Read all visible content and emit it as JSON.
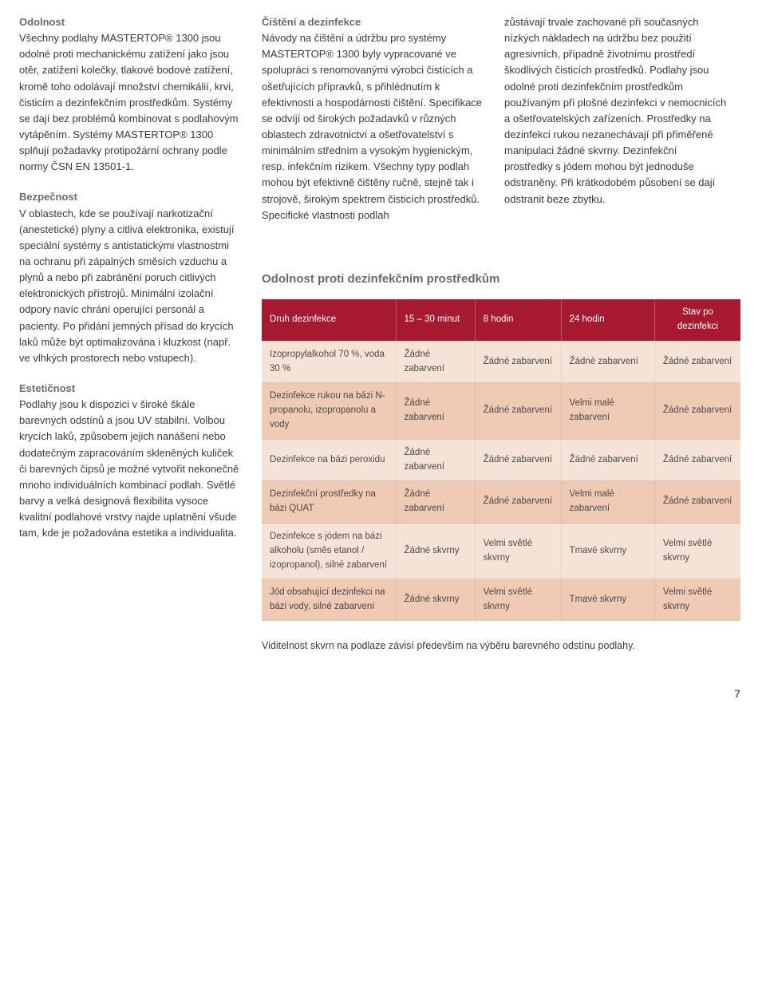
{
  "col1": {
    "h1": "Odolnost",
    "p1": "Všechny podlahy MASTERTOP® 1300 jsou odolné proti mechanickému zatížení jako jsou otěr, zatížení kolečky, tlakové bodové zatížení, kromě toho odolávají množství chemikálií, krvi, čisticím a dezinfekčním prostředkům. Systémy se dají bez problémů kombinovat s podlahovým vytápěním. Systémy MASTERTOP® 1300 splňují požadavky protipožární ochrany podle normy ČSN EN 13501-1.",
    "h2": "Bezpečnost",
    "p2": "V oblastech, kde se používají narkotizační (anestetické) plyny a citlivá elektronika, existují speciální systémy s antistatickými vlastnostmi na ochranu při zápalných směsích vzduchu a plynů a nebo při zabránění poruch citlivých elektronických přístrojů. Minimální izolační odpory navíc chrání operující personál a pacienty. Po přidání jemných přísad do krycích laků může být optimalizována i kluzkost (např. ve vlhkých prostorech nebo vstupech).",
    "h3": "Estetičnost",
    "p3": "Podlahy jsou k dispozici v široké škále barevných odstínů a jsou UV stabilní. Volbou krycích laků, způsobem jejich nanášení nebo dodatečným zapracováním skleněných kuliček či barevných čipsů je možné vytvořit nekonečně mnoho individuálních kombinací podlah. Světlé barvy a velká designová flexibilita vysoce kvalitní podlahové vrstvy najde uplatnění všude tam, kde je požadována estetika a individualita."
  },
  "col2": {
    "h1": "Čištění a dezinfekce",
    "p1": "Návody na čištění a údržbu pro systémy MASTERTOP® 1300 byly vypracované ve spolupráci s renomovanými výrobci čistících a ošetřujících přípravků, s přihlédnutím k efektivnosti a hospodárnosti čištění. Specifikace se odvíjí od širokých požadavků v různých oblastech zdravotnictví a ošetřovatelství s minimálním středním a vysokým hygienickým, resp. infekčním rizikem. Všechny typy podlah mohou být efektivně čištěny ručně, stejně tak i strojově, širokým spektrem čisticích prostředků. Specifické vlastnosti podlah"
  },
  "col3": {
    "p1": "zůstávají trvale zachované při současných nízkých nákladech na údržbu bez použití agresivních, případně životnímu prostředí škodlivých čisticích prostředků. Podlahy jsou odolné proti dezinfekčním prostředkům používaným při plošné dezinfekci v nemocnicích a ošetřovatelských zařízeních. Prostředky na dezinfekci rukou nezanechávají při přiměřené manipulaci žádné skvrny. Dezinfekční prostředky s jódem mohou být jednoduše odstraněny. Při krátkodobém působení se dají odstranit beze zbytku."
  },
  "table": {
    "title": "Odolnost proti dezinfekčním prostředkům",
    "headers": [
      "Druh dezinfekce",
      "15 – 30 minut",
      "8 hodin",
      "24 hodin",
      "Stav po dezinfekci"
    ],
    "rows": [
      {
        "shade": "light",
        "cells": [
          "Izopropylalkohol 70 %, voda 30 %",
          "Žádné zabarvení",
          "Žádné zabarvení",
          "Žádné zabarvení",
          "Žádné zabarvení"
        ]
      },
      {
        "shade": "dark",
        "cells": [
          "Dezinfekce rukou na bázi N-propanolu, izopropanolu a vody",
          "Žádné zabarvení",
          "Žádné zabarvení",
          "Velmi malé zabarvení",
          "Žádné zabarvení"
        ]
      },
      {
        "shade": "light",
        "cells": [
          "Dezinfekce na bázi peroxidu",
          "Žádné zabarvení",
          "Žádné zabarvení",
          "Žádné zabarvení",
          "Žádné zabarvení"
        ]
      },
      {
        "shade": "dark",
        "cells": [
          "Dezinfekční prostředky na bázi QUAT",
          "Žádné zabarvení",
          "Žádné zabarvení",
          "Velmi malé zabarvení",
          "Žádné zabarvení"
        ]
      },
      {
        "shade": "light",
        "cells": [
          "Dezinfekce s jódem na bázi alkoholu (směs etanol / izopropanol), silné zabarvení",
          "Žádné skvrny",
          "Velmi světlé skvrny",
          "Tmavé skvrny",
          "Velmi světlé skvrny"
        ]
      },
      {
        "shade": "dark",
        "cells": [
          "Jód obsahující dezinfekci na bázi vody, silné zabarvení",
          "Žádné skvrny",
          "Velmi světlé skvrny",
          "Tmavé skvrny",
          "Velmi světlé skvrny"
        ]
      }
    ],
    "note": "Viditelnost skvrn na podlaze závisí především na výběru barevného odstínu podlahy."
  },
  "page_number": "7"
}
